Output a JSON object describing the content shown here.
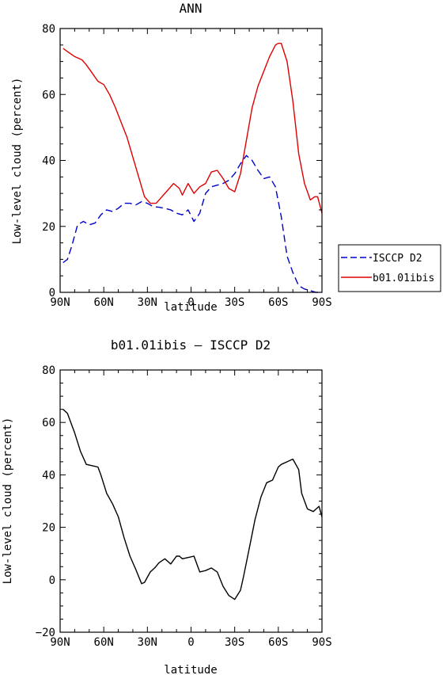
{
  "chart_data": [
    {
      "type": "line",
      "title": "ANN",
      "xlabel": "latitude",
      "ylabel": "Low-level cloud (percent)",
      "x_tick_labels": [
        "90N",
        "60N",
        "30N",
        "0",
        "30S",
        "60S",
        "90S"
      ],
      "x_ticks": [
        -90,
        -60,
        -30,
        0,
        30,
        60,
        90
      ],
      "xlim": [
        -90,
        90
      ],
      "ylim": [
        0,
        80
      ],
      "y_ticks": [
        0,
        20,
        40,
        60,
        80
      ],
      "legend": "right",
      "series": [
        {
          "name": "ISCCP D2",
          "color": "#0000cc",
          "style": "dashed",
          "x": [
            -88,
            -85,
            -82,
            -78,
            -74,
            -70,
            -66,
            -62,
            -58,
            -54,
            -50,
            -46,
            -42,
            -38,
            -34,
            -30,
            -26,
            -22,
            -18,
            -14,
            -10,
            -6,
            -2,
            2,
            6,
            10,
            14,
            18,
            22,
            26,
            30,
            34,
            38,
            42,
            46,
            50,
            54,
            58,
            62,
            66,
            70,
            74,
            78,
            82,
            86,
            90
          ],
          "y": [
            9,
            10,
            14,
            20.5,
            21.5,
            20.5,
            21,
            23.5,
            25,
            24.5,
            25.5,
            27,
            27,
            26.5,
            27.5,
            27,
            26,
            25.8,
            25.5,
            25,
            24,
            23.5,
            25,
            21.5,
            24,
            30,
            32,
            32.5,
            33,
            34,
            36,
            39,
            41.5,
            40,
            37,
            34.5,
            35,
            32,
            23,
            11,
            6,
            2,
            1,
            0.5,
            0,
            0
          ]
        },
        {
          "name": "b01.01ibis",
          "color": "#e00000",
          "style": "solid",
          "x": [
            -88,
            -85,
            -80,
            -75,
            -72,
            -68,
            -64,
            -60,
            -56,
            -52,
            -48,
            -44,
            -40,
            -36,
            -32,
            -28,
            -24,
            -20,
            -16,
            -12,
            -8,
            -6,
            -2,
            2,
            6,
            10,
            14,
            18,
            22,
            26,
            30,
            34,
            38,
            42,
            46,
            50,
            54,
            58,
            60,
            62,
            66,
            70,
            74,
            78,
            82,
            85,
            87,
            90
          ],
          "y": [
            74,
            73,
            71.5,
            70.5,
            69,
            66.5,
            64,
            63,
            60,
            56,
            51.5,
            47,
            41,
            35,
            29,
            27,
            27,
            29,
            31,
            33,
            31.5,
            29.5,
            33,
            30,
            32,
            33,
            36.5,
            37,
            34.5,
            31.5,
            30.5,
            36,
            46,
            56,
            62.5,
            67,
            71.5,
            75,
            75.5,
            75.5,
            70,
            58,
            42,
            33,
            28,
            29,
            29,
            24
          ]
        }
      ]
    },
    {
      "type": "line",
      "title": "b01.01ibis – ISCCP D2",
      "xlabel": "latitude",
      "ylabel": "Low-level cloud (percent)",
      "x_tick_labels": [
        "90N",
        "60N",
        "30N",
        "0",
        "30S",
        "60S",
        "90S"
      ],
      "x_ticks": [
        -90,
        -60,
        -30,
        0,
        30,
        60,
        90
      ],
      "xlim": [
        -90,
        90
      ],
      "ylim": [
        -20,
        80
      ],
      "y_ticks": [
        -20,
        0,
        20,
        40,
        60,
        80
      ],
      "series": [
        {
          "color": "#000000",
          "style": "solid",
          "x": [
            -88,
            -85,
            -80,
            -76,
            -72,
            -68,
            -64,
            -62,
            -58,
            -54,
            -50,
            -46,
            -42,
            -38,
            -34,
            -32,
            -28,
            -25,
            -22,
            -18,
            -14,
            -10,
            -8,
            -6,
            -2,
            2,
            6,
            10,
            14,
            18,
            22,
            26,
            30,
            34,
            36,
            40,
            44,
            48,
            52,
            56,
            60,
            62,
            66,
            70,
            74,
            76,
            80,
            84,
            88,
            90
          ],
          "y": [
            65,
            63.5,
            56,
            49,
            44,
            43.5,
            43,
            40,
            33,
            29,
            24,
            16,
            9,
            4,
            -1.5,
            -1,
            3,
            4.5,
            6.5,
            8,
            6,
            9,
            9,
            8,
            8.5,
            9,
            3,
            3.5,
            4.5,
            3,
            -2.5,
            -6,
            -7.5,
            -4,
            1,
            12,
            23,
            31.5,
            37,
            38,
            43,
            44,
            45,
            46,
            42,
            33,
            27,
            26,
            28,
            24
          ]
        }
      ]
    }
  ]
}
